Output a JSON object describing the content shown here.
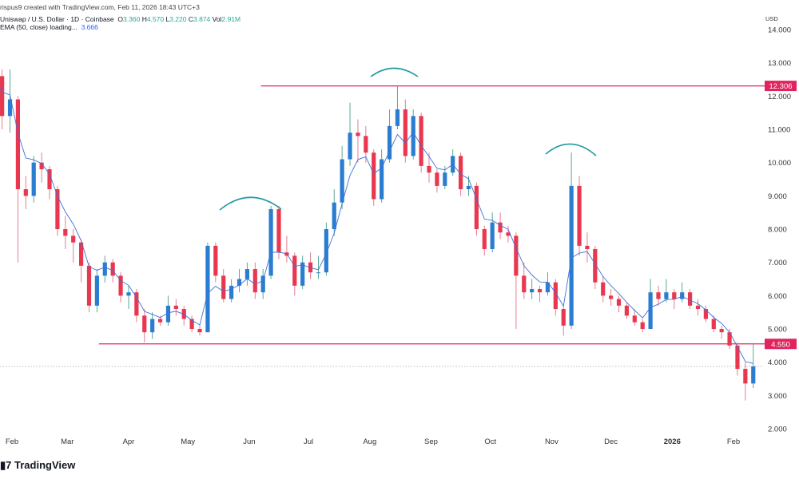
{
  "header": {
    "created_line": "rispus9 created with TradingView.com, Feb 11, 2026 18:43 UTC+3",
    "symbol_line": "Uniswap / U.S. Dollar · 1D · Coinbase",
    "o_label": "O",
    "o_value": "3.360",
    "h_label": "H",
    "h_value": "4.570",
    "l_label": "L",
    "l_value": "3.220",
    "c_label": "C",
    "c_value": "3.874",
    "vol_label": "Vol",
    "vol_value": "2.91M",
    "ema_label": "EMA (50, close) loading...",
    "ema_value": "3.666"
  },
  "currency": "USD",
  "logo_text": "TradingView",
  "colors": {
    "up": "#2a7dd1",
    "down": "#e8374f",
    "up_wick": "#5aa89a",
    "down_wick": "#e67d8d",
    "level": "#e0245e",
    "arc": "#1e9aa0",
    "ema": "#3f6fd8"
  },
  "chart_data": {
    "type": "candlestick",
    "title": "Uniswap / U.S. Dollar · 1D · Coinbase",
    "ylim": [
      2,
      14
    ],
    "y_ticks": [
      "14.000",
      "13.000",
      "12.000",
      "11.000",
      "10.000",
      "9.000",
      "8.000",
      "7.000",
      "6.000",
      "5.000",
      "4.000",
      "3.000",
      "2.000"
    ],
    "x_ticks": [
      {
        "label": "Feb",
        "date": "2025-02-01",
        "bold": false
      },
      {
        "label": "Mar",
        "date": "2025-03-01",
        "bold": false
      },
      {
        "label": "Apr",
        "date": "2025-04-01",
        "bold": false
      },
      {
        "label": "May",
        "date": "2025-05-01",
        "bold": false
      },
      {
        "label": "Jun",
        "date": "2025-06-01",
        "bold": false
      },
      {
        "label": "Jul",
        "date": "2025-07-01",
        "bold": false
      },
      {
        "label": "Aug",
        "date": "2025-08-01",
        "bold": false
      },
      {
        "label": "Sep",
        "date": "2025-09-01",
        "bold": false
      },
      {
        "label": "Oct",
        "date": "2025-10-01",
        "bold": false
      },
      {
        "label": "Nov",
        "date": "2025-11-01",
        "bold": false
      },
      {
        "label": "Dec",
        "date": "2025-12-01",
        "bold": false
      },
      {
        "label": "2026",
        "date": "2026-01-01",
        "bold": true
      },
      {
        "label": "Feb",
        "date": "2026-02-01",
        "bold": false
      }
    ],
    "levels": [
      {
        "value": 12.306,
        "label": "12.306",
        "from": "2025-06-07"
      },
      {
        "value": 4.55,
        "label": "4.550",
        "from": "2025-03-17"
      }
    ],
    "current_price": 3.874,
    "ema_period": 50,
    "candles_columns": [
      "date",
      "open",
      "high",
      "low",
      "close"
    ],
    "candles": [
      [
        "2025-01-23",
        12.0,
        12.9,
        11.8,
        12.6
      ],
      [
        "2025-01-27",
        12.6,
        12.8,
        11.0,
        11.4
      ],
      [
        "2025-01-31",
        11.4,
        12.8,
        10.9,
        11.9
      ],
      [
        "2025-02-04",
        11.9,
        12.0,
        7.0,
        9.2
      ],
      [
        "2025-02-08",
        9.2,
        9.6,
        8.6,
        9.0
      ],
      [
        "2025-02-12",
        9.0,
        10.2,
        8.8,
        10.0
      ],
      [
        "2025-02-16",
        10.0,
        10.3,
        9.4,
        9.8
      ],
      [
        "2025-02-20",
        9.8,
        9.9,
        8.9,
        9.2
      ],
      [
        "2025-02-24",
        9.2,
        9.3,
        7.8,
        8.0
      ],
      [
        "2025-02-28",
        8.0,
        8.4,
        7.4,
        7.8
      ],
      [
        "2025-03-04",
        7.8,
        8.0,
        7.0,
        7.6
      ],
      [
        "2025-03-08",
        7.6,
        7.7,
        6.4,
        6.9
      ],
      [
        "2025-03-12",
        6.9,
        7.0,
        5.5,
        5.7
      ],
      [
        "2025-03-16",
        5.7,
        6.8,
        5.5,
        6.6
      ],
      [
        "2025-03-20",
        6.6,
        7.2,
        6.4,
        7.0
      ],
      [
        "2025-03-24",
        7.0,
        7.1,
        6.4,
        6.6
      ],
      [
        "2025-03-28",
        6.6,
        6.7,
        5.8,
        6.0
      ],
      [
        "2025-04-01",
        6.0,
        6.3,
        5.6,
        6.1
      ],
      [
        "2025-04-05",
        6.1,
        6.2,
        5.2,
        5.4
      ],
      [
        "2025-04-09",
        5.4,
        5.6,
        4.6,
        4.9
      ],
      [
        "2025-04-13",
        4.9,
        5.5,
        4.7,
        5.3
      ],
      [
        "2025-04-17",
        5.3,
        5.4,
        5.1,
        5.2
      ],
      [
        "2025-04-21",
        5.2,
        6.0,
        5.1,
        5.7
      ],
      [
        "2025-04-25",
        5.7,
        5.9,
        5.4,
        5.6
      ],
      [
        "2025-04-29",
        5.6,
        5.7,
        5.1,
        5.3
      ],
      [
        "2025-05-03",
        5.3,
        5.4,
        4.9,
        5.0
      ],
      [
        "2025-05-07",
        5.0,
        5.1,
        4.8,
        4.9
      ],
      [
        "2025-05-11",
        4.9,
        7.6,
        4.9,
        7.5
      ],
      [
        "2025-05-15",
        7.5,
        7.6,
        6.4,
        6.6
      ],
      [
        "2025-05-19",
        6.6,
        6.8,
        5.8,
        5.9
      ],
      [
        "2025-05-23",
        5.9,
        6.5,
        5.8,
        6.3
      ],
      [
        "2025-05-27",
        6.3,
        6.8,
        6.1,
        6.5
      ],
      [
        "2025-05-31",
        6.5,
        7.0,
        6.3,
        6.8
      ],
      [
        "2025-06-04",
        6.8,
        7.0,
        5.9,
        6.1
      ],
      [
        "2025-06-08",
        6.1,
        6.8,
        5.9,
        6.6
      ],
      [
        "2025-06-12",
        6.6,
        8.7,
        6.5,
        8.6
      ],
      [
        "2025-06-16",
        8.6,
        8.7,
        7.1,
        7.3
      ],
      [
        "2025-06-20",
        7.3,
        7.8,
        7.0,
        7.2
      ],
      [
        "2025-06-24",
        7.2,
        7.3,
        6.0,
        6.3
      ],
      [
        "2025-06-28",
        6.3,
        7.2,
        6.2,
        7.0
      ],
      [
        "2025-07-02",
        7.0,
        7.3,
        6.5,
        6.7
      ],
      [
        "2025-07-06",
        6.7,
        7.2,
        6.5,
        6.7
      ],
      [
        "2025-07-10",
        6.7,
        8.2,
        6.6,
        8.0
      ],
      [
        "2025-07-14",
        8.0,
        9.2,
        7.8,
        8.8
      ],
      [
        "2025-07-18",
        8.8,
        10.5,
        8.6,
        10.1
      ],
      [
        "2025-07-22",
        10.1,
        11.8,
        9.9,
        10.9
      ],
      [
        "2025-07-26",
        10.9,
        11.3,
        10.0,
        10.8
      ],
      [
        "2025-07-30",
        10.8,
        11.1,
        10.0,
        10.3
      ],
      [
        "2025-08-03",
        10.3,
        10.4,
        8.7,
        8.9
      ],
      [
        "2025-08-07",
        8.9,
        10.4,
        8.8,
        10.1
      ],
      [
        "2025-08-11",
        10.1,
        11.6,
        10.0,
        11.1
      ],
      [
        "2025-08-15",
        11.1,
        12.306,
        11.0,
        11.6
      ],
      [
        "2025-08-19",
        11.6,
        11.9,
        10.0,
        10.2
      ],
      [
        "2025-08-23",
        10.2,
        11.6,
        10.1,
        11.4
      ],
      [
        "2025-08-27",
        11.4,
        11.5,
        9.7,
        9.9
      ],
      [
        "2025-08-31",
        9.9,
        10.3,
        9.4,
        9.7
      ],
      [
        "2025-09-04",
        9.7,
        9.8,
        9.1,
        9.3
      ],
      [
        "2025-09-08",
        9.3,
        9.9,
        9.2,
        9.7
      ],
      [
        "2025-09-12",
        9.7,
        10.4,
        9.6,
        10.2
      ],
      [
        "2025-09-16",
        10.2,
        10.3,
        9.0,
        9.2
      ],
      [
        "2025-09-20",
        9.2,
        9.6,
        9.0,
        9.3
      ],
      [
        "2025-09-24",
        9.3,
        9.4,
        7.8,
        8.0
      ],
      [
        "2025-09-28",
        8.0,
        8.1,
        7.2,
        7.4
      ],
      [
        "2025-10-02",
        7.4,
        8.5,
        7.3,
        8.2
      ],
      [
        "2025-10-06",
        8.2,
        8.5,
        7.7,
        7.9
      ],
      [
        "2025-10-10",
        7.9,
        8.1,
        7.6,
        7.8
      ],
      [
        "2025-10-14",
        7.8,
        7.9,
        5.0,
        6.6
      ],
      [
        "2025-10-18",
        6.6,
        7.0,
        5.9,
        6.1
      ],
      [
        "2025-10-22",
        6.1,
        6.5,
        5.9,
        6.2
      ],
      [
        "2025-10-26",
        6.2,
        6.3,
        5.8,
        6.1
      ],
      [
        "2025-10-30",
        6.1,
        6.7,
        6.0,
        6.4
      ],
      [
        "2025-11-03",
        6.4,
        6.5,
        5.4,
        5.6
      ],
      [
        "2025-11-07",
        5.6,
        5.7,
        4.8,
        5.1
      ],
      [
        "2025-11-11",
        5.1,
        10.3,
        5.0,
        9.3
      ],
      [
        "2025-11-15",
        9.3,
        9.6,
        7.2,
        7.5
      ],
      [
        "2025-11-19",
        7.5,
        7.9,
        7.0,
        7.4
      ],
      [
        "2025-11-23",
        7.4,
        7.5,
        6.2,
        6.4
      ],
      [
        "2025-11-27",
        6.4,
        6.6,
        5.8,
        6.0
      ],
      [
        "2025-12-01",
        6.0,
        6.2,
        5.7,
        5.9
      ],
      [
        "2025-12-05",
        5.9,
        6.0,
        5.5,
        5.7
      ],
      [
        "2025-12-09",
        5.7,
        5.8,
        5.3,
        5.4
      ],
      [
        "2025-12-13",
        5.4,
        5.6,
        5.1,
        5.2
      ],
      [
        "2025-12-17",
        5.2,
        5.3,
        4.9,
        5.0
      ],
      [
        "2025-12-21",
        5.0,
        6.5,
        5.0,
        6.1
      ],
      [
        "2025-12-25",
        6.1,
        6.3,
        5.7,
        5.9
      ],
      [
        "2025-12-29",
        5.9,
        6.5,
        5.8,
        6.1
      ],
      [
        "2026-01-02",
        6.1,
        6.2,
        5.6,
        5.9
      ],
      [
        "2026-01-06",
        5.9,
        6.4,
        5.8,
        6.1
      ],
      [
        "2026-01-10",
        6.1,
        6.2,
        5.6,
        5.7
      ],
      [
        "2026-01-14",
        5.7,
        5.9,
        5.4,
        5.6
      ],
      [
        "2026-01-18",
        5.6,
        5.7,
        5.2,
        5.3
      ],
      [
        "2026-01-22",
        5.3,
        5.4,
        4.9,
        5.0
      ],
      [
        "2026-01-26",
        5.0,
        5.1,
        4.7,
        4.9
      ],
      [
        "2026-01-30",
        4.9,
        5.0,
        4.4,
        4.5
      ],
      [
        "2026-02-03",
        4.5,
        4.6,
        3.6,
        3.8
      ],
      [
        "2026-02-07",
        3.8,
        4.0,
        2.85,
        3.36
      ],
      [
        "2026-02-11",
        3.36,
        4.57,
        3.22,
        3.874
      ]
    ]
  }
}
